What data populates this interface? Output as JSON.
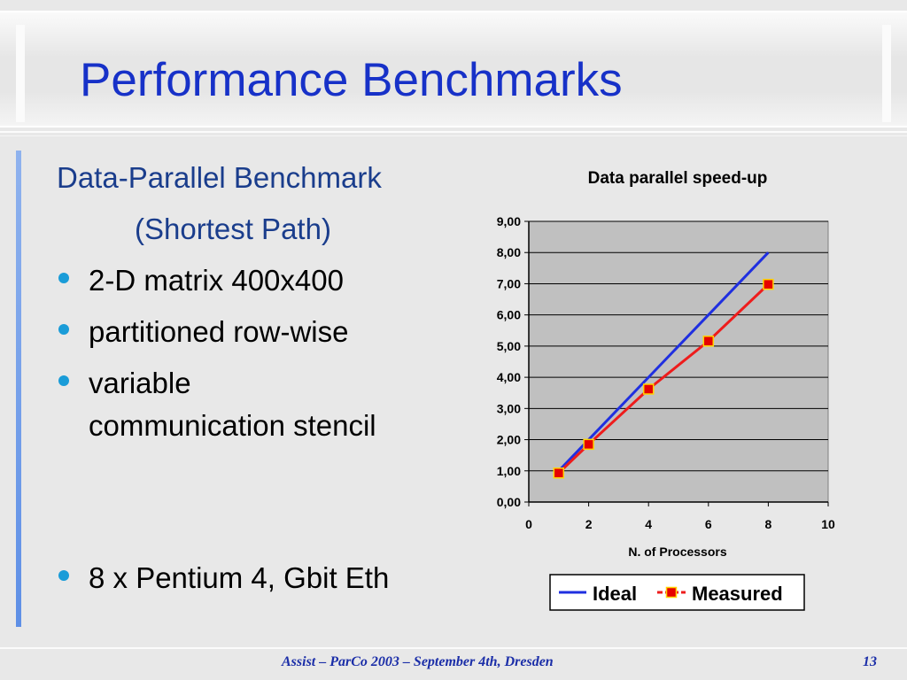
{
  "slide": {
    "title": "Performance Benchmarks",
    "subheading_line1": "Data-Parallel Benchmark",
    "subheading_line2": "(Shortest Path)",
    "bullets": [
      {
        "text": "2-D matrix 400x400"
      },
      {
        "text": "partitioned row-wise"
      },
      {
        "text": "variable communication stencil",
        "lines": [
          "variable",
          "communication stencil"
        ]
      },
      {
        "text": "8 x Pentium 4, Gbit Eth"
      }
    ],
    "footer": "Assist – ParCo 2003 – September 4th, Dresden",
    "page_number": "13"
  },
  "colors": {
    "title": "#1731c8",
    "subheading": "#1a3d8c",
    "bullet_dot": "#1a9cd8",
    "accent_bar": "#6a98e8",
    "plot_background": "#c0c0c0",
    "ideal_line": "#1f2fe0",
    "measured_line": "#ee1c1c",
    "measured_marker_fill": "#e60000",
    "measured_marker_border": "#ffd400"
  },
  "chart_data": {
    "type": "line",
    "title": "Data parallel speed-up",
    "xlabel": "N. of Processors",
    "ylabel": "",
    "xlim": [
      0,
      10
    ],
    "ylim": [
      0,
      9
    ],
    "x_ticks": [
      "0",
      "2",
      "4",
      "6",
      "8",
      "10"
    ],
    "y_ticks": [
      "0,00",
      "1,00",
      "2,00",
      "3,00",
      "4,00",
      "5,00",
      "6,00",
      "7,00",
      "8,00",
      "9,00"
    ],
    "grid": "horizontal",
    "legend": "bottom",
    "series": [
      {
        "name": "Ideal",
        "x": [
          1,
          2,
          4,
          6,
          8
        ],
        "y": [
          1,
          2,
          4,
          6,
          8
        ],
        "marker": "none"
      },
      {
        "name": "Measured",
        "x": [
          1,
          2,
          4,
          6,
          8
        ],
        "y": [
          0.93,
          1.85,
          3.62,
          5.16,
          6.98
        ],
        "marker": "square"
      }
    ]
  }
}
